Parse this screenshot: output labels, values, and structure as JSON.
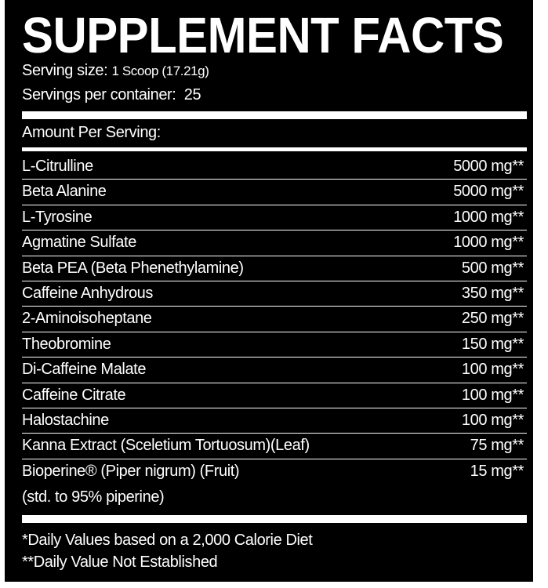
{
  "title": "SUPPLEMENT FACTS",
  "serving_size_label": "Serving size:",
  "serving_size_value": "1 Scoop (17.21g)",
  "servings_per_container_label": "Servings per container:",
  "servings_per_container_value": "25",
  "amount_per_serving": "Amount Per Serving:",
  "ingredients": [
    {
      "name": "L-Citrulline",
      "amount": "5000 mg**"
    },
    {
      "name": "Beta Alanine",
      "amount": "5000 mg**"
    },
    {
      "name": "L-Tyrosine",
      "amount": "1000 mg**"
    },
    {
      "name": "Agmatine Sulfate",
      "amount": "1000 mg**"
    },
    {
      "name": "Beta PEA (Beta Phenethylamine)",
      "amount": "500 mg**"
    },
    {
      "name": "Caffeine Anhydrous",
      "amount": "350 mg**"
    },
    {
      "name": "2-Aminoisoheptane",
      "amount": "250 mg**"
    },
    {
      "name": "Theobromine",
      "amount": "150 mg**"
    },
    {
      "name": "Di-Caffeine Malate",
      "amount": "100 mg**"
    },
    {
      "name": "Caffeine Citrate",
      "amount": "100 mg**"
    },
    {
      "name": "Halostachine",
      "amount": "100 mg**"
    },
    {
      "name": "Kanna Extract (Sceletium Tortuosum)(Leaf)",
      "amount": "75 mg**"
    },
    {
      "name": "Bioperine® (Piper nigrum) (Fruit)",
      "amount": "15 mg**",
      "note": "(std. to 95% piperine)"
    }
  ],
  "footnotes": [
    "*Daily Values based on a 2,000 Calorie Diet",
    "**Daily Value Not Established"
  ],
  "colors": {
    "background": "#000000",
    "text": "#ffffff"
  }
}
